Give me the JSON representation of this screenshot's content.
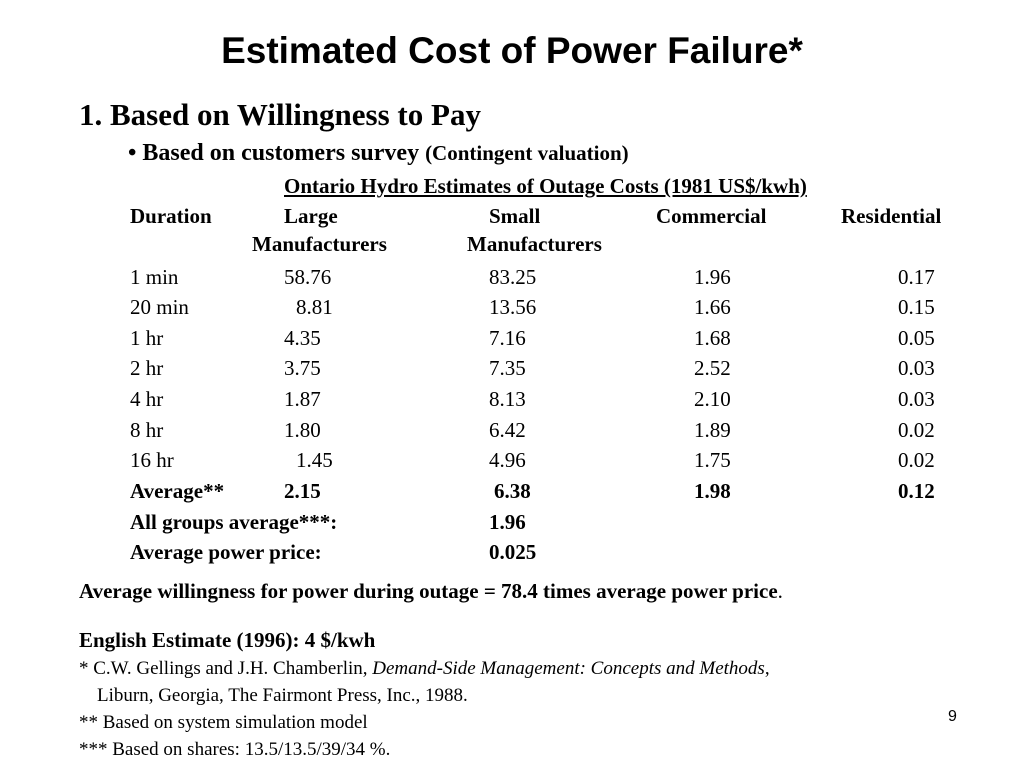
{
  "title": "Estimated Cost of Power Failure*",
  "section_heading": "1. Based on Willingness to Pay",
  "bullet": {
    "symbol": "•",
    "main": "Based on customers survey",
    "paren": "(Contingent valuation)"
  },
  "table": {
    "caption": "Ontario Hydro Estimates of Outage Costs (1981 US$/kwh)",
    "headers": {
      "duration": "Duration",
      "large_1": "Large",
      "large_2": "Manufacturers",
      "small_1": "Small",
      "small_2": "Manufacturers",
      "commercial": "Commercial",
      "residential": "Residential"
    },
    "rows": [
      {
        "duration": "1 min",
        "large": "58.76",
        "small": "83.25",
        "commercial": "1.96",
        "residential": "0.17"
      },
      {
        "duration": "20 min",
        "large": "8.81",
        "small": "13.56",
        "commercial": "1.66",
        "residential": "0.15"
      },
      {
        "duration": "1 hr",
        "large": "4.35",
        "small": "7.16",
        "commercial": "1.68",
        "residential": "0.05"
      },
      {
        "duration": "2 hr",
        "large": "3.75",
        "small": "7.35",
        "commercial": "2.52",
        "residential": "0.03"
      },
      {
        "duration": "4 hr",
        "large": "1.87",
        "small": "8.13",
        "commercial": "2.10",
        "residential": "0.03"
      },
      {
        "duration": "8 hr",
        "large": "1.80",
        "small": "6.42",
        "commercial": "1.89",
        "residential": "0.02"
      },
      {
        "duration": "16 hr",
        "large": "1.45",
        "small": "4.96",
        "commercial": "1.75",
        "residential": "0.02"
      }
    ],
    "average_row": {
      "duration": "Average**",
      "large": "2.15",
      "small": "6.38",
      "commercial": "1.98",
      "residential": "0.12"
    },
    "all_groups": {
      "label": "All groups average***:",
      "value": "1.96"
    },
    "power_price": {
      "label": "Average power price:",
      "value": "0.025"
    }
  },
  "conclusion": {
    "text": "Average willingness for power during outage  = 78.4 times average power price",
    "end": "."
  },
  "english_estimate": "English Estimate (1996):  4 $/kwh",
  "footnotes": {
    "f1_pre": "* C.W. Gellings and J.H. Chamberlin, ",
    "f1_italic": "Demand-Side Management: Concepts and Methods",
    "f1_post": ",",
    "f1_line2": "Liburn, Georgia, The Fairmont Press, Inc., 1988.",
    "f2": "** Based on system simulation model",
    "f3": "*** Based on shares: 13.5/13.5/39/34 %."
  },
  "page_number": "9"
}
